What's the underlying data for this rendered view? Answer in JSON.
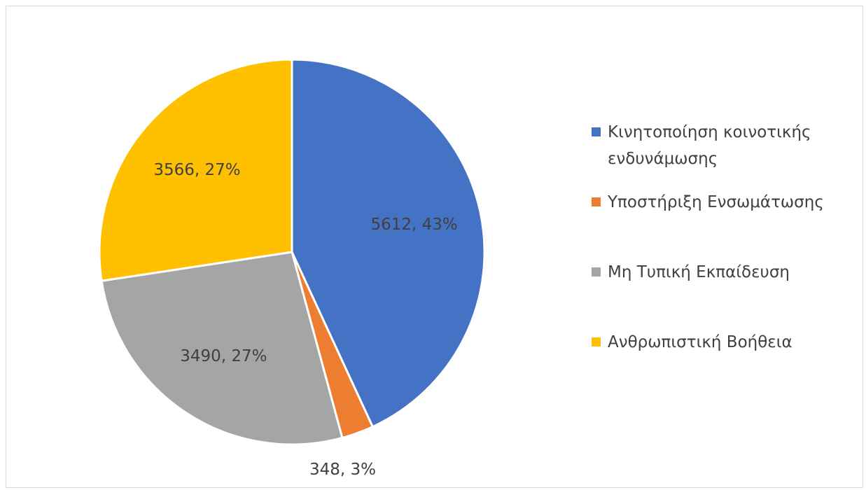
{
  "chart_data": {
    "type": "pie",
    "categories": [
      "Κινητοποίηση κοινοτικής ενδυνάμωσης",
      "Υποστήριξη Ενσωμάτωσης",
      "Μη Τυπική Εκπαίδευση",
      "Ανθρωπιστική Βοήθεια"
    ],
    "values": [
      5612,
      348,
      3490,
      3566
    ],
    "value_labels": [
      "5612, 43%",
      "348, 3%",
      "3490, 27%",
      "3566, 27%"
    ],
    "colors": [
      "#4472c4",
      "#ed7d31",
      "#a5a5a5",
      "#ffc000"
    ],
    "legend": "right"
  }
}
